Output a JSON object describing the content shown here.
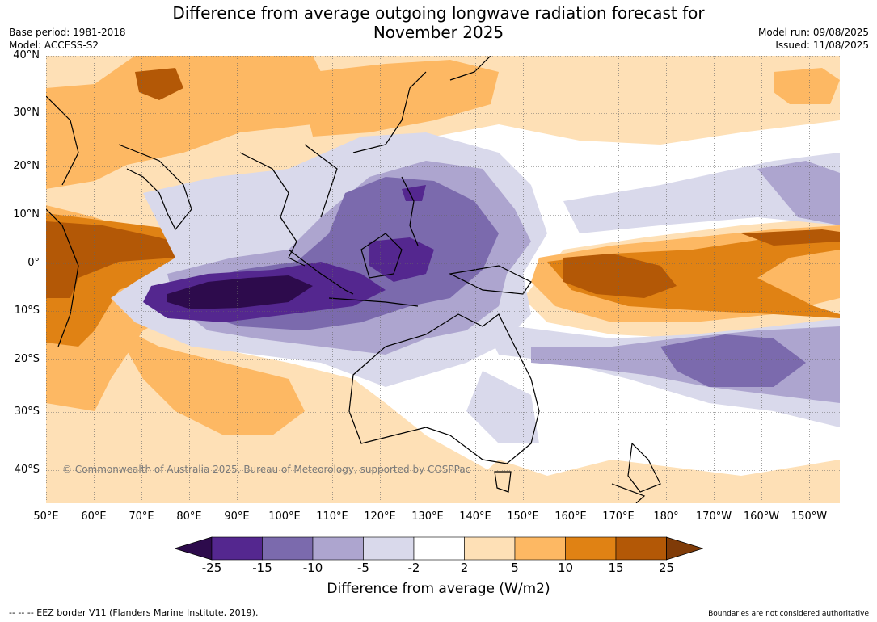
{
  "title_line1": "Difference from average outgoing longwave radiation forecast for",
  "title_line2": "November 2025",
  "base_period": "Base period: 1981-2018",
  "model": "Model: ACCESS-S2",
  "model_run": "Model run: 09/08/2025",
  "issued": "Issued: 11/08/2025",
  "copyright": "© Commonwealth of Australia 2025, Bureau of Meteorology, supported by COSPPac",
  "eez_note": "--  --  -- EEZ border V11 (Flanders Marine Institute, 2019).",
  "boundaries_note": "Boundaries are not considered authoritative",
  "lat_labels": [
    "40°N",
    "30°N",
    "20°N",
    "10°N",
    "0°",
    "10°S",
    "20°S",
    "30°S",
    "40°S"
  ],
  "lon_labels": [
    "50°E",
    "60°E",
    "70°E",
    "80°E",
    "90°E",
    "100°E",
    "110°E",
    "120°E",
    "130°E",
    "140°E",
    "150°E",
    "160°E",
    "170°E",
    "180°",
    "170°W",
    "160°W",
    "150°W"
  ],
  "colorbar": {
    "title": "Difference from average (W/m2)",
    "ticks": [
      "-25",
      "-15",
      "-10",
      "-5",
      "-2",
      "2",
      "5",
      "10",
      "15",
      "25"
    ],
    "colors": {
      "lt25": "#2d0b4c",
      "m25_m15": "#54278f",
      "m15_m10": "#7b6aad",
      "m10_m5": "#ada5cf",
      "m5_m2": "#d9d9eb",
      "m2_2": "#ffffff",
      "p2_p5": "#fee0b6",
      "p5_p10": "#fdb863",
      "p10_p15": "#e08214",
      "p15_p25": "#b35806",
      "gt25": "#7f3b08"
    }
  }
}
